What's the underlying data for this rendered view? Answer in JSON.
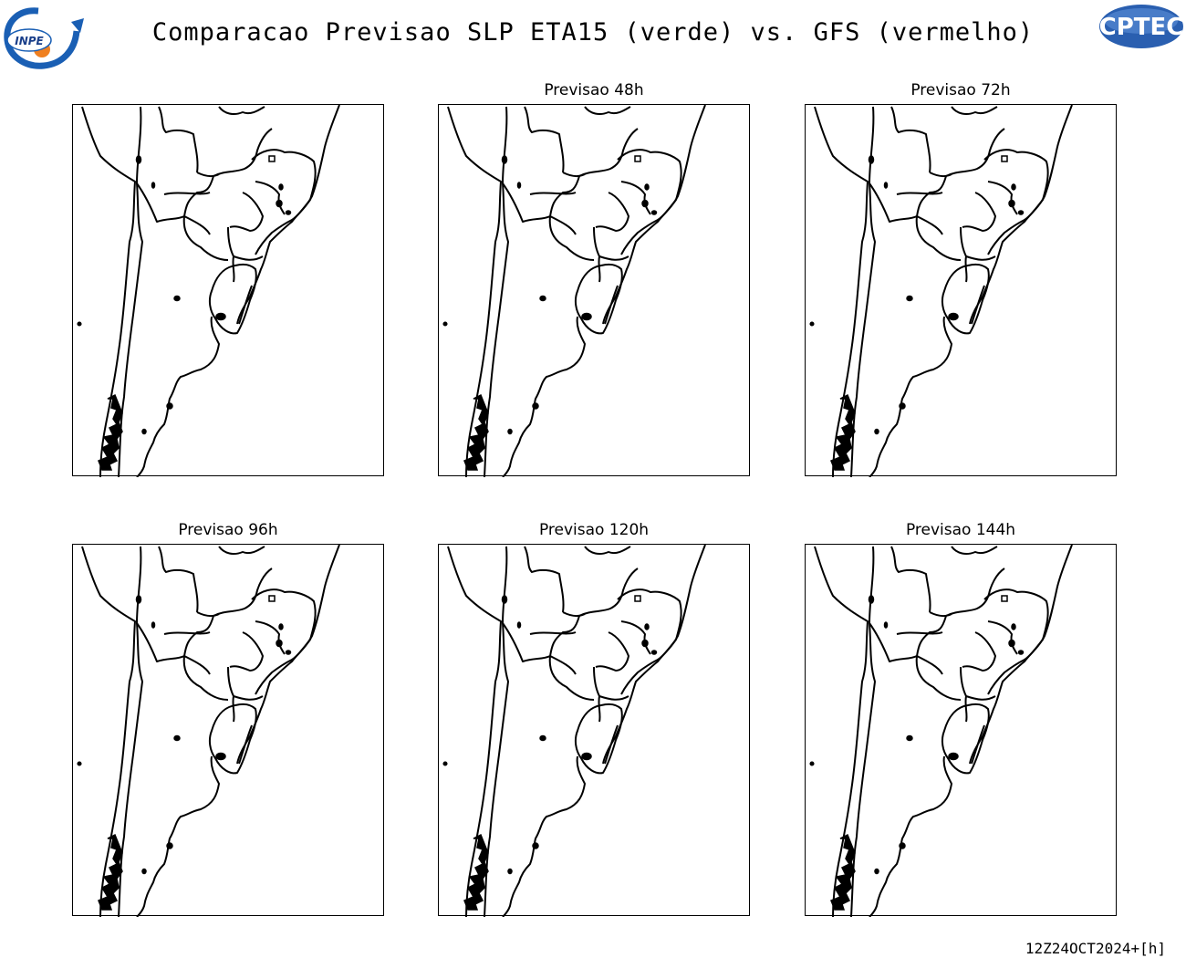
{
  "header": {
    "title": "Comparacao Previsao SLP ETA15 (verde) vs. GFS (vermelho)",
    "left_logo": {
      "icon": "inpe-logo",
      "text": "INPE",
      "colors": {
        "blue": "#1a5fb4",
        "orange": "#f08020"
      }
    },
    "right_logo": {
      "icon": "cptec-logo",
      "text": "CPTEC",
      "colors": {
        "blue": "#2a5fb0"
      }
    }
  },
  "panels": [
    {
      "title": ""
    },
    {
      "title": "Previsao 48h"
    },
    {
      "title": "Previsao 72h"
    },
    {
      "title": "Previsao 96h"
    },
    {
      "title": "Previsao 120h"
    },
    {
      "title": "Previsao 144h"
    }
  ],
  "footer": {
    "timestamp": "12Z24OCT2024+[h]"
  },
  "map": {
    "region": "southern-south-america",
    "line_color": "#000000"
  }
}
